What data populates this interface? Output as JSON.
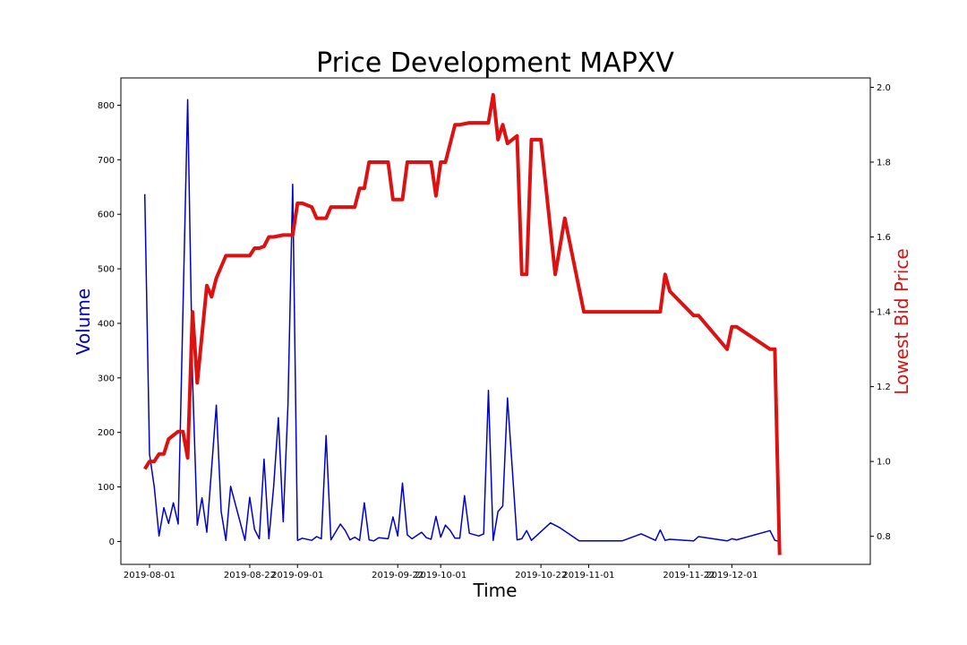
{
  "chart_data": {
    "type": "line",
    "title": "Price Development MAPXV",
    "xlabel": "Time",
    "ylabel_left": "Volume",
    "ylabel_right": "Lowest Bid Price",
    "left_axis_color": "#0000cc",
    "right_axis_color": "#dd1111",
    "x_range": [
      "2019-07-26",
      "2019-12-30"
    ],
    "ylim_left": [
      -42,
      850
    ],
    "ylim_right": [
      0.725,
      2.025
    ],
    "x_ticks": [
      "2019-08-01",
      "2019-08-22",
      "2019-09-01",
      "2019-09-22",
      "2019-10-01",
      "2019-10-22",
      "2019-11-01",
      "2019-11-22",
      "2019-12-01"
    ],
    "y_ticks_left": [
      0,
      100,
      200,
      300,
      400,
      500,
      600,
      700,
      800
    ],
    "y_ticks_right": [
      "0.8",
      "1.0",
      "1.2",
      "1.4",
      "1.6",
      "1.8",
      "2.0"
    ],
    "grid": false,
    "series": [
      {
        "axis": "left",
        "color": "#0000cc",
        "points": [
          [
            "2019-07-31",
            637
          ],
          [
            "2019-08-01",
            160
          ],
          [
            "2019-08-02",
            100
          ],
          [
            "2019-08-03",
            10
          ],
          [
            "2019-08-04",
            62
          ],
          [
            "2019-08-05",
            33
          ],
          [
            "2019-08-06",
            71
          ],
          [
            "2019-08-07",
            32
          ],
          [
            "2019-08-09",
            810
          ],
          [
            "2019-08-10",
            300
          ],
          [
            "2019-08-11",
            30
          ],
          [
            "2019-08-12",
            80
          ],
          [
            "2019-08-13",
            17
          ],
          [
            "2019-08-15",
            250
          ],
          [
            "2019-08-16",
            55
          ],
          [
            "2019-08-17",
            2
          ],
          [
            "2019-08-18",
            101
          ],
          [
            "2019-08-21",
            2
          ],
          [
            "2019-08-22",
            81
          ],
          [
            "2019-08-23",
            22
          ],
          [
            "2019-08-24",
            5
          ],
          [
            "2019-08-25",
            151
          ],
          [
            "2019-08-26",
            5
          ],
          [
            "2019-08-27",
            100
          ],
          [
            "2019-08-28",
            227
          ],
          [
            "2019-08-29",
            36
          ],
          [
            "2019-08-30",
            250
          ],
          [
            "2019-08-31",
            655
          ],
          [
            "2019-09-01",
            2
          ],
          [
            "2019-09-02",
            6
          ],
          [
            "2019-09-04",
            2
          ],
          [
            "2019-09-05",
            9
          ],
          [
            "2019-09-06",
            5
          ],
          [
            "2019-09-07",
            194
          ],
          [
            "2019-09-08",
            3
          ],
          [
            "2019-09-10",
            32
          ],
          [
            "2019-09-11",
            20
          ],
          [
            "2019-09-12",
            3
          ],
          [
            "2019-09-13",
            8
          ],
          [
            "2019-09-14",
            2
          ],
          [
            "2019-09-15",
            71
          ],
          [
            "2019-09-16",
            3
          ],
          [
            "2019-09-17",
            1
          ],
          [
            "2019-09-18",
            7
          ],
          [
            "2019-09-20",
            5
          ],
          [
            "2019-09-21",
            45
          ],
          [
            "2019-09-22",
            10
          ],
          [
            "2019-09-23",
            107
          ],
          [
            "2019-09-24",
            12
          ],
          [
            "2019-09-25",
            5
          ],
          [
            "2019-09-27",
            17
          ],
          [
            "2019-09-28",
            7
          ],
          [
            "2019-09-29",
            4
          ],
          [
            "2019-09-30",
            46
          ],
          [
            "2019-10-01",
            8
          ],
          [
            "2019-10-02",
            30
          ],
          [
            "2019-10-03",
            20
          ],
          [
            "2019-10-04",
            6
          ],
          [
            "2019-10-05",
            6
          ],
          [
            "2019-10-06",
            84
          ],
          [
            "2019-10-07",
            15
          ],
          [
            "2019-10-09",
            10
          ],
          [
            "2019-10-10",
            14
          ],
          [
            "2019-10-11",
            277
          ],
          [
            "2019-10-12",
            2
          ],
          [
            "2019-10-13",
            55
          ],
          [
            "2019-10-14",
            65
          ],
          [
            "2019-10-15",
            263
          ],
          [
            "2019-10-17",
            3
          ],
          [
            "2019-10-18",
            5
          ],
          [
            "2019-10-19",
            20
          ],
          [
            "2019-10-20",
            2
          ],
          [
            "2019-10-24",
            34
          ],
          [
            "2019-10-26",
            25
          ],
          [
            "2019-10-30",
            1
          ],
          [
            "2019-11-08",
            1
          ],
          [
            "2019-11-12",
            14
          ],
          [
            "2019-11-15",
            2
          ],
          [
            "2019-11-16",
            21
          ],
          [
            "2019-11-17",
            2
          ],
          [
            "2019-11-18",
            4
          ],
          [
            "2019-11-23",
            1
          ],
          [
            "2019-11-24",
            9
          ],
          [
            "2019-11-30",
            1
          ],
          [
            "2019-12-01",
            5
          ],
          [
            "2019-12-02",
            3
          ],
          [
            "2019-12-09",
            20
          ],
          [
            "2019-12-10",
            2
          ],
          [
            "2019-12-11",
            0
          ]
        ]
      },
      {
        "axis": "right",
        "color": "#dd1111",
        "points": [
          [
            "2019-07-31",
            0.98
          ],
          [
            "2019-08-01",
            1.0
          ],
          [
            "2019-08-02",
            1.0
          ],
          [
            "2019-08-03",
            1.02
          ],
          [
            "2019-08-04",
            1.02
          ],
          [
            "2019-08-05",
            1.06
          ],
          [
            "2019-08-07",
            1.08
          ],
          [
            "2019-08-08",
            1.08
          ],
          [
            "2019-08-09",
            1.01
          ],
          [
            "2019-08-10",
            1.4
          ],
          [
            "2019-08-11",
            1.21
          ],
          [
            "2019-08-13",
            1.47
          ],
          [
            "2019-08-14",
            1.44
          ],
          [
            "2019-08-15",
            1.49
          ],
          [
            "2019-08-17",
            1.55
          ],
          [
            "2019-08-21",
            1.55
          ],
          [
            "2019-08-22",
            1.55
          ],
          [
            "2019-08-23",
            1.57
          ],
          [
            "2019-08-24",
            1.57
          ],
          [
            "2019-08-25",
            1.575
          ],
          [
            "2019-08-26",
            1.6
          ],
          [
            "2019-08-27",
            1.6
          ],
          [
            "2019-08-29",
            1.605
          ],
          [
            "2019-08-31",
            1.605
          ],
          [
            "2019-09-01",
            1.69
          ],
          [
            "2019-09-02",
            1.69
          ],
          [
            "2019-09-04",
            1.68
          ],
          [
            "2019-09-05",
            1.65
          ],
          [
            "2019-09-07",
            1.65
          ],
          [
            "2019-09-08",
            1.68
          ],
          [
            "2019-09-13",
            1.68
          ],
          [
            "2019-09-14",
            1.73
          ],
          [
            "2019-09-15",
            1.73
          ],
          [
            "2019-09-16",
            1.8
          ],
          [
            "2019-09-20",
            1.8
          ],
          [
            "2019-09-21",
            1.7
          ],
          [
            "2019-09-23",
            1.7
          ],
          [
            "2019-09-24",
            1.8
          ],
          [
            "2019-09-29",
            1.8
          ],
          [
            "2019-09-30",
            1.71
          ],
          [
            "2019-10-01",
            1.8
          ],
          [
            "2019-10-02",
            1.8
          ],
          [
            "2019-10-04",
            1.9
          ],
          [
            "2019-10-05",
            1.9
          ],
          [
            "2019-10-07",
            1.905
          ],
          [
            "2019-10-11",
            1.905
          ],
          [
            "2019-10-12",
            1.98
          ],
          [
            "2019-10-13",
            1.86
          ],
          [
            "2019-10-14",
            1.9
          ],
          [
            "2019-10-15",
            1.85
          ],
          [
            "2019-10-17",
            1.87
          ],
          [
            "2019-10-18",
            1.5
          ],
          [
            "2019-10-19",
            1.5
          ],
          [
            "2019-10-20",
            1.86
          ],
          [
            "2019-10-22",
            1.86
          ],
          [
            "2019-10-25",
            1.5
          ],
          [
            "2019-10-27",
            1.65
          ],
          [
            "2019-10-31",
            1.4
          ],
          [
            "2019-11-16",
            1.4
          ],
          [
            "2019-11-17",
            1.5
          ],
          [
            "2019-11-18",
            1.455
          ],
          [
            "2019-11-23",
            1.39
          ],
          [
            "2019-11-24",
            1.39
          ],
          [
            "2019-11-30",
            1.3
          ],
          [
            "2019-12-01",
            1.36
          ],
          [
            "2019-12-02",
            1.36
          ],
          [
            "2019-12-09",
            1.3
          ],
          [
            "2019-12-10",
            1.3
          ],
          [
            "2019-12-11",
            0.75
          ]
        ]
      }
    ]
  }
}
